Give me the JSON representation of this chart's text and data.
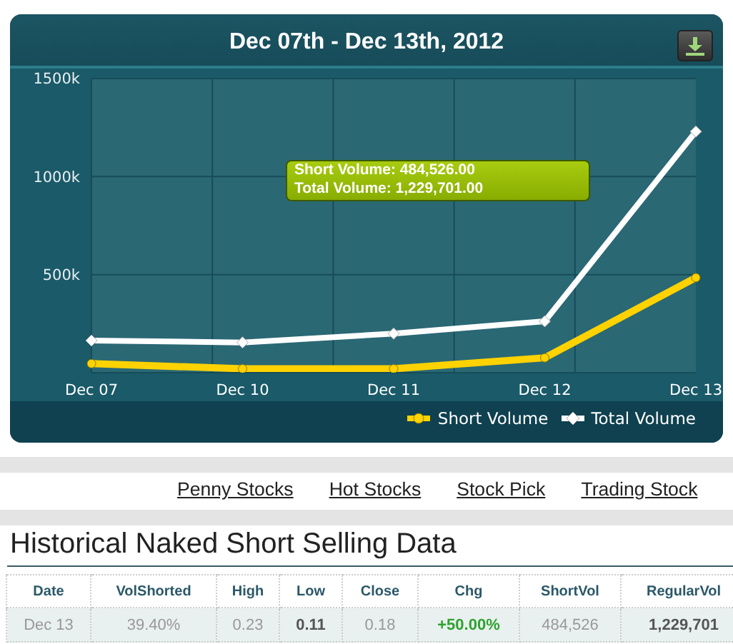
{
  "chart_data": [
    {
      "type": "line",
      "title": "Dec 07th - Dec 13th, 2012",
      "categories": [
        "Dec 07",
        "Dec 10",
        "Dec 11",
        "Dec 12",
        "Dec 13"
      ],
      "series": [
        {
          "name": "Short Volume",
          "color": "#ffd200",
          "marker": "circle",
          "values": [
            46000,
            20000,
            20000,
            76000,
            484526
          ]
        },
        {
          "name": "Total Volume",
          "color": "#ffffff",
          "marker": "diamond",
          "values": [
            164000,
            154000,
            199000,
            262000,
            1229701
          ]
        }
      ],
      "ylim": [
        0,
        1500000
      ],
      "yticks": [
        {
          "value": 500000,
          "label": "500k"
        },
        {
          "value": 1000000,
          "label": "1000k"
        },
        {
          "value": 1500000,
          "label": "1500k"
        }
      ],
      "grid": true,
      "legend": "bottom right",
      "annotations": [
        "Short Volume: 484,526.00",
        "Total Volume: 1,229,701.00"
      ]
    },
    {
      "type": "other",
      "title": "Historical Naked Short Selling Data",
      "annotations": [
        "Penny Stocks",
        "Hot Stocks",
        "Stock Pick",
        "Trading Stock"
      ],
      "categories": [
        "Date",
        "VolShorted",
        "High",
        "Low",
        "Close",
        "Chg",
        "ShortVol",
        "RegularVol"
      ],
      "cell_labels": [
        [
          "Dec 13",
          "39.40%",
          "0.23",
          "0.11",
          "0.18",
          "+50.00%",
          "484,526",
          "1,229,701"
        ]
      ]
    }
  ]
}
